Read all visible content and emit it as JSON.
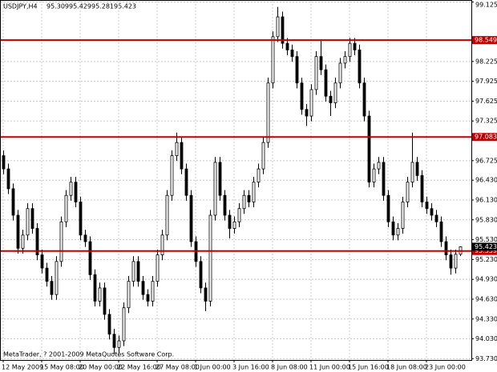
{
  "chart_data": {
    "type": "candlestick",
    "symbol": "USDJPY,H4",
    "footer": "MetaTrader, ? 2001-2009 MetaQuotes Software Corp.",
    "categories": [
      "12 May 2009",
      null,
      null,
      null,
      null,
      null,
      null,
      null,
      "15 May 08:00",
      null,
      null,
      null,
      null,
      null,
      null,
      null,
      "20 May 00:00",
      null,
      null,
      null,
      null,
      null,
      null,
      null,
      "22 May 16:00",
      null,
      null,
      null,
      null,
      null,
      null,
      null,
      "27 May 08:00",
      null,
      null,
      null,
      null,
      null,
      null,
      null,
      "1 Jun 00:00",
      null,
      null,
      null,
      null,
      null,
      null,
      null,
      "3 Jun 16:00",
      null,
      null,
      null,
      null,
      null,
      null,
      null,
      "8 Jun 08:00",
      null,
      null,
      null,
      null,
      null,
      null,
      null,
      "11 Jun 00:00",
      null,
      null,
      null,
      null,
      null,
      null,
      null,
      "15 Jun 16:00",
      null,
      null,
      null,
      null,
      null,
      null,
      null,
      "18 Jun 08:00",
      null,
      null,
      null,
      null,
      null,
      null,
      null,
      "23 Jun 00:00",
      null,
      null,
      null,
      null,
      null,
      null,
      null
    ],
    "open": [
      96.8,
      96.6,
      96.3,
      95.9,
      95.4,
      95.6,
      96.0,
      95.7,
      95.3,
      95.1,
      94.9,
      94.7,
      95.2,
      95.8,
      96.2,
      96.4,
      96.1,
      95.6,
      95.5,
      95.0,
      94.6,
      94.8,
      94.4,
      94.1,
      93.9,
      94.0,
      94.5,
      94.9,
      95.2,
      94.9,
      94.7,
      94.6,
      94.9,
      95.3,
      95.6,
      96.2,
      96.8,
      97.0,
      96.6,
      96.2,
      95.5,
      95.2,
      94.8,
      94.6,
      95.9,
      96.7,
      96.2,
      95.9,
      95.7,
      95.8,
      96.0,
      96.2,
      96.1,
      96.4,
      96.6,
      97.0,
      97.9,
      98.6,
      98.9,
      98.5,
      98.4,
      98.3,
      97.9,
      97.5,
      97.4,
      97.8,
      98.3,
      98.1,
      97.7,
      97.6,
      97.9,
      98.2,
      98.3,
      98.5,
      98.4,
      97.9,
      97.4,
      96.4,
      96.6,
      96.7,
      96.2,
      95.8,
      95.6,
      95.7,
      96.1,
      96.4,
      96.7,
      96.5,
      96.1,
      96.0,
      95.9,
      95.8,
      95.5,
      95.3,
      95.1,
      95.309
    ],
    "high": [
      96.88,
      96.68,
      96.38,
      95.98,
      95.68,
      96.08,
      96.08,
      95.78,
      95.38,
      95.18,
      94.98,
      95.28,
      95.88,
      96.28,
      96.48,
      96.48,
      96.18,
      95.68,
      95.58,
      95.08,
      94.88,
      94.88,
      94.48,
      94.18,
      94.08,
      94.58,
      94.98,
      95.28,
      95.28,
      94.98,
      94.78,
      94.98,
      95.38,
      95.68,
      96.28,
      96.88,
      97.15,
      97.08,
      96.68,
      96.28,
      95.58,
      95.28,
      94.88,
      95.98,
      96.78,
      96.78,
      96.28,
      95.98,
      95.88,
      96.08,
      96.28,
      96.28,
      96.48,
      96.68,
      97.08,
      97.98,
      98.68,
      99.05,
      98.98,
      98.58,
      98.48,
      98.38,
      97.98,
      97.58,
      97.88,
      98.38,
      98.55,
      98.18,
      97.78,
      97.98,
      98.28,
      98.38,
      98.58,
      98.58,
      98.48,
      97.98,
      97.48,
      96.68,
      96.78,
      96.78,
      96.28,
      95.88,
      95.78,
      96.18,
      96.48,
      97.15,
      96.78,
      96.58,
      96.18,
      96.08,
      95.98,
      95.88,
      95.58,
      95.38,
      95.38,
      95.429
    ],
    "low": [
      96.52,
      96.22,
      95.82,
      95.32,
      95.32,
      95.52,
      95.62,
      95.22,
      95.02,
      94.82,
      94.62,
      94.62,
      95.12,
      95.72,
      96.12,
      96.02,
      95.52,
      95.42,
      94.92,
      94.52,
      94.52,
      94.32,
      94.02,
      93.8,
      93.82,
      93.92,
      94.42,
      94.82,
      94.82,
      94.62,
      94.52,
      94.52,
      94.82,
      95.22,
      95.52,
      96.12,
      96.72,
      96.52,
      96.12,
      95.42,
      95.12,
      94.72,
      94.45,
      94.52,
      95.82,
      96.12,
      95.82,
      95.55,
      95.62,
      95.72,
      95.92,
      96.02,
      96.02,
      96.32,
      96.52,
      96.92,
      97.82,
      98.52,
      98.42,
      98.32,
      98.22,
      97.82,
      97.42,
      97.25,
      97.32,
      97.72,
      98.02,
      97.62,
      97.4,
      97.52,
      97.82,
      98.12,
      98.22,
      98.32,
      97.82,
      97.32,
      96.32,
      96.32,
      96.52,
      96.12,
      95.72,
      95.52,
      95.52,
      95.62,
      96.02,
      96.32,
      96.42,
      96.02,
      95.92,
      95.82,
      95.72,
      95.42,
      95.22,
      95.0,
      95.02,
      95.281
    ],
    "close": [
      96.6,
      96.3,
      95.9,
      95.4,
      95.6,
      96.0,
      95.7,
      95.3,
      95.1,
      94.9,
      94.7,
      95.2,
      95.8,
      96.2,
      96.4,
      96.1,
      95.6,
      95.5,
      95.0,
      94.6,
      94.8,
      94.4,
      94.1,
      93.9,
      94.0,
      94.5,
      94.9,
      95.2,
      94.9,
      94.7,
      94.6,
      94.9,
      95.3,
      95.6,
      96.2,
      96.8,
      97.0,
      96.6,
      96.2,
      95.5,
      95.2,
      94.8,
      94.6,
      95.9,
      96.7,
      96.2,
      95.9,
      95.7,
      95.8,
      96.0,
      96.2,
      96.1,
      96.4,
      96.6,
      97.0,
      97.9,
      98.6,
      98.9,
      98.5,
      98.4,
      98.3,
      97.9,
      97.5,
      97.4,
      97.8,
      98.3,
      98.1,
      97.7,
      97.6,
      97.9,
      98.2,
      98.3,
      98.5,
      98.4,
      97.9,
      97.4,
      96.4,
      96.6,
      96.7,
      96.2,
      95.8,
      95.6,
      95.7,
      96.1,
      96.4,
      96.7,
      96.5,
      96.1,
      96.0,
      95.9,
      95.8,
      95.5,
      95.3,
      95.1,
      95.309,
      95.423
    ],
    "levels": [
      98.549,
      97.083,
      95.359
    ],
    "level_color": "#c00000",
    "ylim": [
      93.71,
      99.155
    ],
    "yticks": [
      99.125,
      98.225,
      97.925,
      97.625,
      97.325,
      96.725,
      {
        "value": 96.43,
        "label": "96.430"
      },
      {
        "value": 96.13,
        "label": "96.130"
      },
      {
        "value": 95.83,
        "label": "95.830"
      },
      {
        "value": 95.53,
        "label": "95.530"
      },
      {
        "value": 95.23,
        "label": "95.230"
      },
      {
        "value": 94.93,
        "label": "94.930"
      },
      {
        "value": 94.63,
        "label": "94.630"
      },
      {
        "value": 94.33,
        "label": "94.330"
      },
      {
        "value": 94.03,
        "label": "94.030"
      },
      {
        "value": 93.73,
        "label": "93.730"
      }
    ],
    "grid": true
  }
}
